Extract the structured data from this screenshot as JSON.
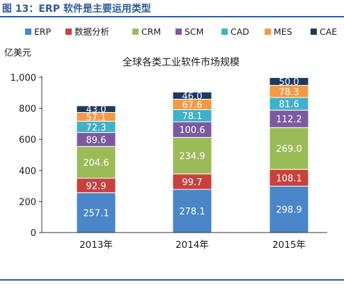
{
  "figure": {
    "title": "图 13：ERP 软件是主要运用类型"
  },
  "chart_data": {
    "type": "bar",
    "stacked": true,
    "title": "全球各类工业软件市场规模",
    "ylabel": "亿美元",
    "xlabel": "",
    "ylim": [
      0,
      1000
    ],
    "yticks": [
      0,
      200,
      400,
      600,
      800,
      1000
    ],
    "ytick_labels": [
      "0",
      "200",
      "400",
      "600",
      "800",
      "1,000"
    ],
    "categories": [
      "2013年",
      "2014年",
      "2015年"
    ],
    "legend_position": "top",
    "grid": false,
    "series": [
      {
        "name": "ERP",
        "color": "#4a86c8",
        "values": [
          257.1,
          278.1,
          298.9
        ],
        "labels": [
          "257.1",
          "278.1",
          "298.9"
        ]
      },
      {
        "name": "数据分析",
        "color": "#c8413d",
        "values": [
          92.9,
          99.7,
          108.1
        ],
        "labels": [
          "92.9",
          "99.7",
          "108.1"
        ]
      },
      {
        "name": "CRM",
        "color": "#9bbb59",
        "values": [
          204.6,
          234.9,
          269.0
        ],
        "labels": [
          "204.6",
          "234.9",
          "269.0"
        ]
      },
      {
        "name": "SCM",
        "color": "#7b5aa2",
        "values": [
          89.6,
          100.6,
          112.2
        ],
        "labels": [
          "89.6",
          "100.6",
          "112.2"
        ]
      },
      {
        "name": "CAD",
        "color": "#3fb1c9",
        "values": [
          72.3,
          78.1,
          81.6
        ],
        "labels": [
          "72.3",
          "78.1",
          "81.6"
        ]
      },
      {
        "name": "MES",
        "color": "#f39a46",
        "values": [
          57.1,
          67.6,
          78.3
        ],
        "labels": [
          "57.1",
          "67.6",
          "78.3"
        ]
      },
      {
        "name": "CAE",
        "color": "#1f3a5f",
        "values": [
          43.0,
          46.0,
          50.0
        ],
        "labels": [
          "43.0",
          "46.0",
          "50.0"
        ]
      }
    ]
  }
}
